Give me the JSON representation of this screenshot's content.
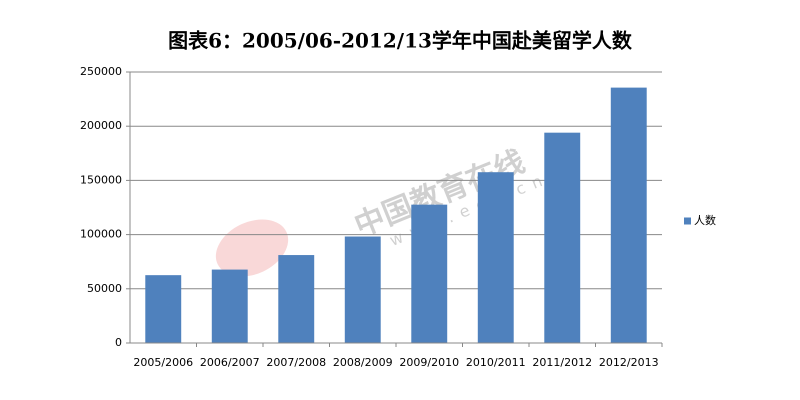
{
  "chart_data": {
    "type": "bar",
    "title": "图表6：2005/06-2012/13学年中国赴美留学人数",
    "categories": [
      "2005/2006",
      "2006/2007",
      "2007/2008",
      "2008/2009",
      "2009/2010",
      "2010/2011",
      "2011/2012",
      "2012/2013"
    ],
    "series": [
      {
        "name": "人数",
        "color": "#4f81bd",
        "values": [
          62582,
          67723,
          81127,
          98235,
          127628,
          157558,
          194029,
          235597
        ]
      }
    ],
    "ylim": [
      0,
      250000
    ],
    "yticks": [
      0,
      50000,
      100000,
      150000,
      200000,
      250000
    ],
    "grid": true,
    "legend": "right",
    "watermark": "中国教育在线",
    "watermark_url": "www.eol.cn"
  }
}
